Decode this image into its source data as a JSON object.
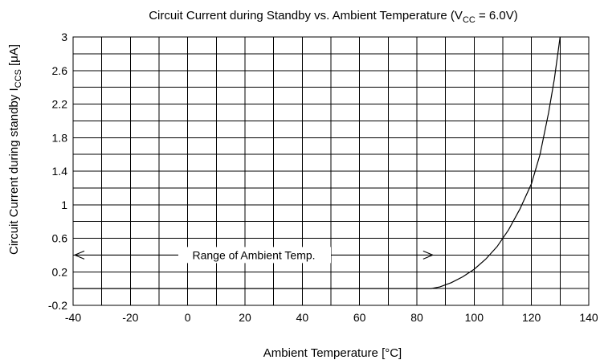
{
  "chart_data": {
    "type": "line",
    "title": "Circuit Current during Standby vs. Ambient Temperature (V",
    "title_sub": "CC",
    "title_tail": " = 6.0V)",
    "xlabel": "Ambient Temperature [°C]",
    "ylabel": "Circuit Current during standby I",
    "ylabel_sub": "CCS",
    "ylabel_tail": " [μA]",
    "xlim": [
      -40,
      140
    ],
    "ylim": [
      -0.2,
      3.0
    ],
    "x_major_ticks": [
      -40,
      -20,
      0,
      20,
      40,
      60,
      80,
      100,
      120,
      140
    ],
    "x_grid_step": 10,
    "x_tick_labels": [
      "-40",
      "-20",
      "0",
      "20",
      "40",
      "60",
      "80",
      "100",
      "120",
      "140"
    ],
    "y_major_ticks": [
      -0.2,
      0.2,
      0.6,
      1.0,
      1.4,
      1.8,
      2.2,
      2.6,
      3.0
    ],
    "y_grid_step": 0.2,
    "y_tick_labels": [
      "-0.2",
      "0.2",
      "0.6",
      "1",
      "1.4",
      "1.8",
      "2.2",
      "2.6",
      "3"
    ],
    "grid": true,
    "series": [
      {
        "x": [
          -40,
          0,
          40,
          80,
          85,
          88,
          92,
          96,
          100,
          104,
          108,
          112,
          116,
          120,
          123,
          126,
          128,
          130
        ],
        "y": [
          0.0,
          0.0,
          0.0,
          0.0,
          0.0,
          0.02,
          0.07,
          0.14,
          0.23,
          0.35,
          0.5,
          0.7,
          0.95,
          1.25,
          1.6,
          2.1,
          2.5,
          3.0
        ]
      }
    ],
    "annotations": [
      {
        "text": "Range of Ambient Temp.",
        "x_start": -40,
        "x_end": 85,
        "y": 0.4
      }
    ]
  }
}
